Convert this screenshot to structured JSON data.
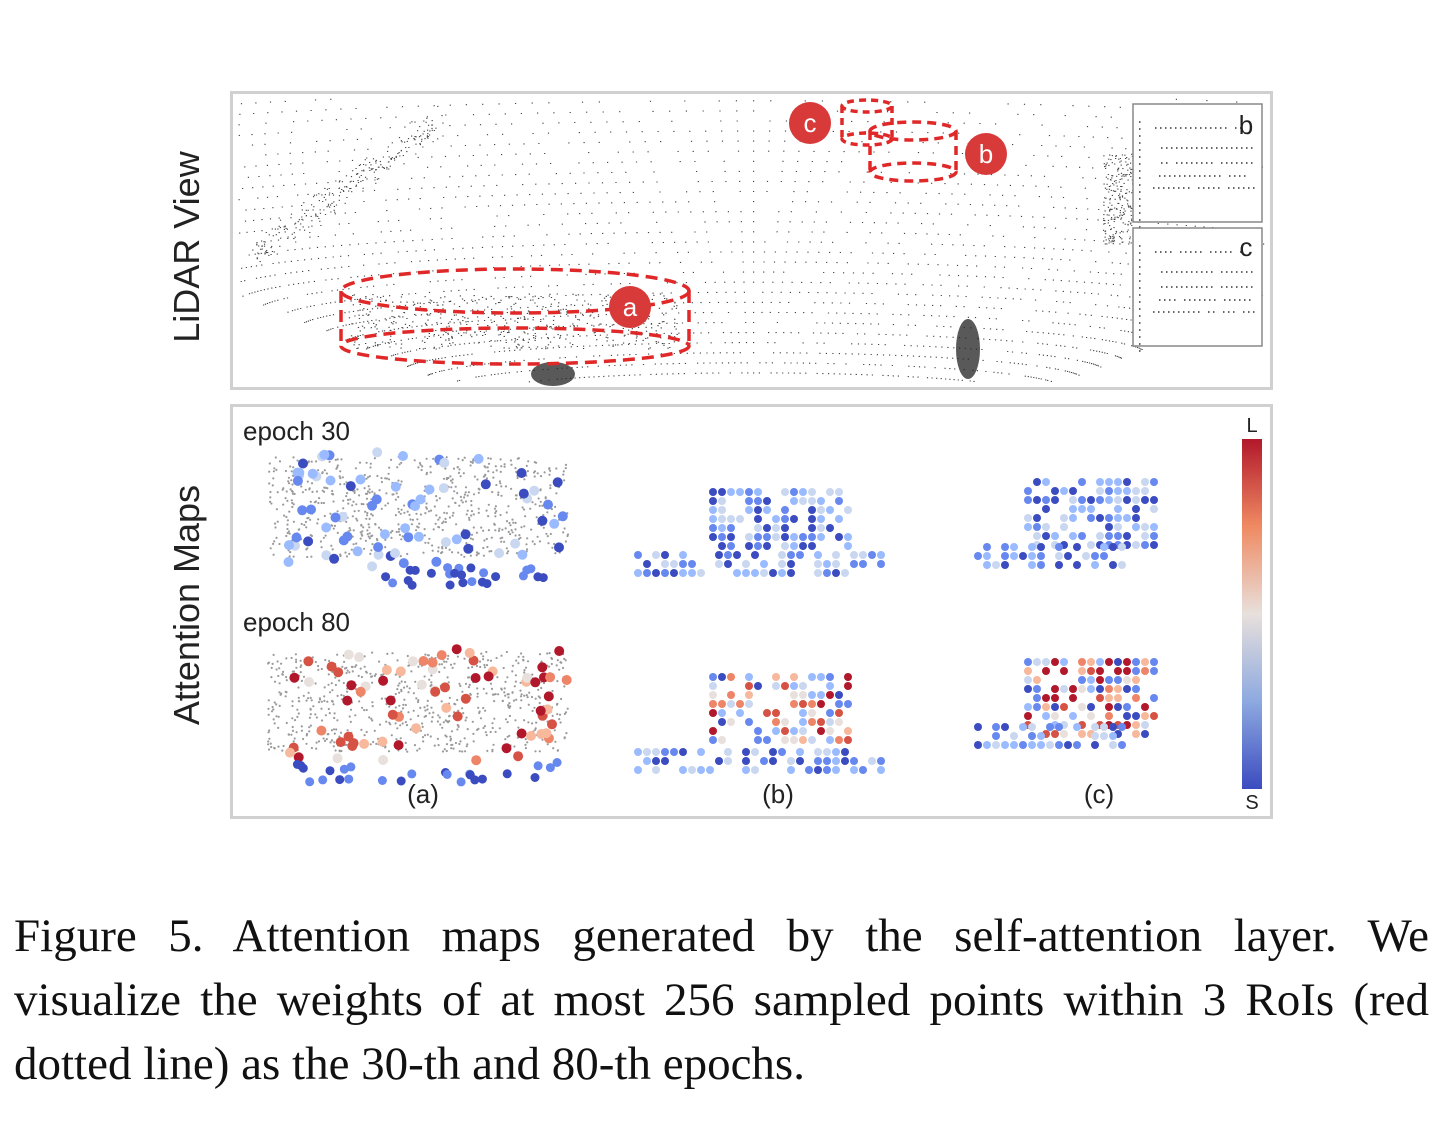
{
  "figure": {
    "row_labels": {
      "lidar": "LiDAR View",
      "attention": "Attention Maps"
    },
    "roi_markers": [
      "a",
      "b",
      "c"
    ],
    "inset_labels": [
      "b",
      "c"
    ],
    "epoch_labels": [
      "epoch 30",
      "epoch 80"
    ],
    "column_labels": [
      "(a)",
      "(b)",
      "(c)"
    ],
    "colorbar": {
      "top_label": "L",
      "bottom_label": "S",
      "high_color": "#b2182b",
      "mid_color": "#e8e0dc",
      "low_color": "#3b4cc0"
    },
    "roi_color": "#e02828",
    "marker_color": "#d83a3a"
  },
  "caption": "Figure 5. Attention maps generated by the self-attention layer. We visualize the weights of at most 256 sampled points within 3 RoIs (red dotted line) as the 30-th and 80-th epochs."
}
